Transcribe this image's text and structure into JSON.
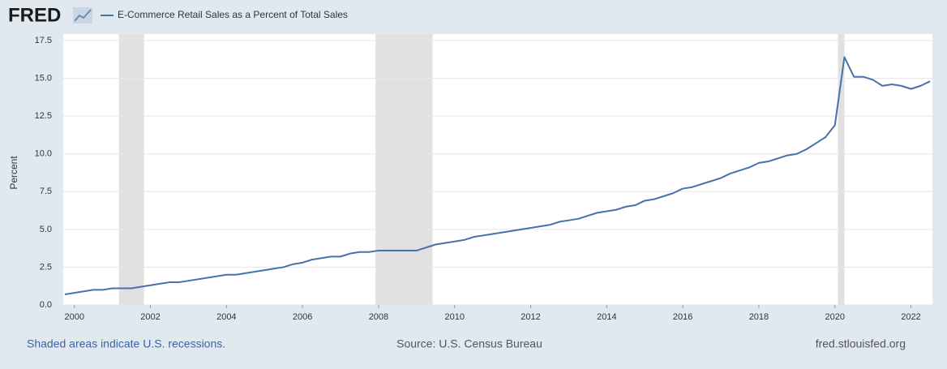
{
  "header": {
    "logo": "FRED"
  },
  "chart_data": {
    "type": "line",
    "y_label": "Percent",
    "x": [
      1999.75,
      2000,
      2000.25,
      2000.5,
      2000.75,
      2001,
      2001.25,
      2001.5,
      2001.75,
      2002,
      2002.25,
      2002.5,
      2002.75,
      2003,
      2003.25,
      2003.5,
      2003.75,
      2004,
      2004.25,
      2004.5,
      2004.75,
      2005,
      2005.25,
      2005.5,
      2005.75,
      2006,
      2006.25,
      2006.5,
      2006.75,
      2007,
      2007.25,
      2007.5,
      2007.75,
      2008,
      2008.25,
      2008.5,
      2008.75,
      2009,
      2009.25,
      2009.5,
      2009.75,
      2010,
      2010.25,
      2010.5,
      2010.75,
      2011,
      2011.25,
      2011.5,
      2011.75,
      2012,
      2012.25,
      2012.5,
      2012.75,
      2013,
      2013.25,
      2013.5,
      2013.75,
      2014,
      2014.25,
      2014.5,
      2014.75,
      2015,
      2015.25,
      2015.5,
      2015.75,
      2016,
      2016.25,
      2016.5,
      2016.75,
      2017,
      2017.25,
      2017.5,
      2017.75,
      2018,
      2018.25,
      2018.5,
      2018.75,
      2019,
      2019.25,
      2019.5,
      2019.75,
      2020,
      2020.25,
      2020.5,
      2020.75,
      2021,
      2021.25,
      2021.5,
      2021.75,
      2022,
      2022.25,
      2022.5
    ],
    "series": [
      {
        "name": "E-Commerce Retail Sales as a Percent of Total Sales",
        "color": "#4572a7",
        "values": [
          0.7,
          0.8,
          0.9,
          1.0,
          1.0,
          1.1,
          1.1,
          1.1,
          1.2,
          1.3,
          1.4,
          1.5,
          1.5,
          1.6,
          1.7,
          1.8,
          1.9,
          2.0,
          2.0,
          2.1,
          2.2,
          2.3,
          2.4,
          2.5,
          2.7,
          2.8,
          3.0,
          3.1,
          3.2,
          3.2,
          3.4,
          3.5,
          3.5,
          3.6,
          3.6,
          3.6,
          3.6,
          3.6,
          3.8,
          4.0,
          4.1,
          4.2,
          4.3,
          4.5,
          4.6,
          4.7,
          4.8,
          4.9,
          5.0,
          5.1,
          5.2,
          5.3,
          5.5,
          5.6,
          5.7,
          5.9,
          6.1,
          6.2,
          6.3,
          6.5,
          6.6,
          6.9,
          7.0,
          7.2,
          7.4,
          7.7,
          7.8,
          8.0,
          8.2,
          8.4,
          8.7,
          8.9,
          9.1,
          9.4,
          9.5,
          9.7,
          9.9,
          10.0,
          10.3,
          10.7,
          11.1,
          11.9,
          16.4,
          15.1,
          15.1,
          14.9,
          14.5,
          14.6,
          14.5,
          14.3,
          14.5,
          14.8
        ]
      }
    ],
    "xlim": [
      1999.75,
      2022.5
    ],
    "xticks": [
      2000,
      2002,
      2004,
      2006,
      2008,
      2010,
      2012,
      2014,
      2016,
      2018,
      2020,
      2022
    ],
    "ylim": [
      0,
      17.5
    ],
    "yticks": [
      {
        "value": 0,
        "label": "0.0"
      },
      2.5,
      {
        "value": 5,
        "label": "5.0"
      },
      7.5,
      {
        "value": 10,
        "label": "10.0"
      },
      12.5,
      {
        "value": 15,
        "label": "15.0"
      },
      17.5
    ],
    "grid": true,
    "recessions": [
      {
        "start": 2001.17,
        "end": 2001.83
      },
      {
        "start": 2007.92,
        "end": 2009.42
      },
      {
        "start": 2020.08,
        "end": 2020.25
      }
    ],
    "recession_color": "#e1e1e1"
  },
  "footer": {
    "note": "Shaded areas indicate U.S. recessions.",
    "source": "Source: U.S. Census Bureau",
    "site": "fred.stlouisfed.org"
  }
}
